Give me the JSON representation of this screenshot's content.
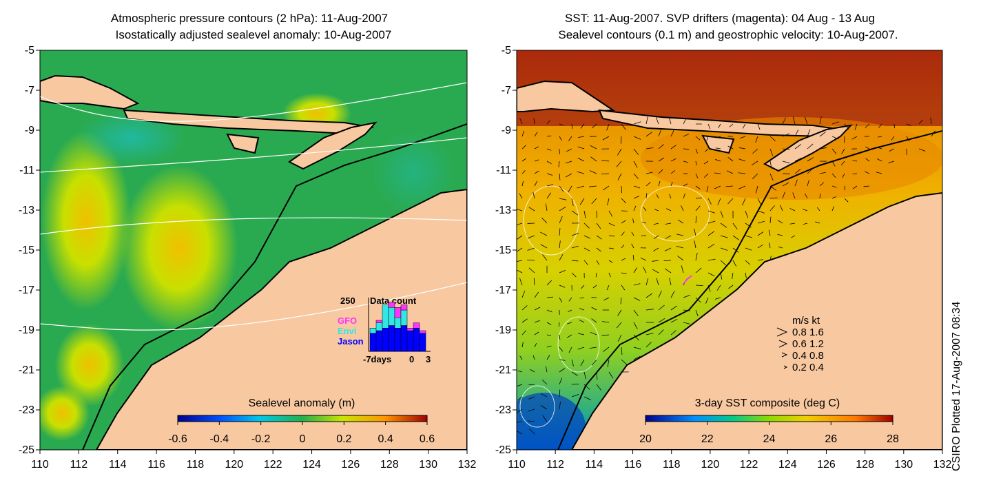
{
  "left_panel": {
    "title_line1": "Atmospheric pressure contours (2 hPa): 11-Aug-2007",
    "title_line2": "Isostatically adjusted sealevel anomaly: 10-Aug-2007",
    "colorbar": {
      "label": "Sealevel anomaly (m)",
      "ticks": [
        "-0.6",
        "-0.4",
        "-0.2",
        "0",
        "0.2",
        "0.4",
        "0.6"
      ],
      "range": [
        -0.6,
        0.6
      ]
    },
    "inset": {
      "title": "Data count",
      "ymax_label": "250",
      "legend": [
        {
          "label": "GFO",
          "color": "#ff33ff"
        },
        {
          "label": "Envi",
          "color": "#33e6e6"
        },
        {
          "label": "Jason",
          "color": "#0000ff"
        }
      ],
      "x_labels": [
        "-7days",
        "0",
        "3"
      ],
      "bars": [
        {
          "jason": 0.35,
          "envi": 0.1,
          "gfo": 0.0
        },
        {
          "jason": 0.4,
          "envi": 0.15,
          "gfo": 0.05
        },
        {
          "jason": 0.45,
          "envi": 0.45,
          "gfo": 0.0
        },
        {
          "jason": 0.5,
          "envi": 0.35,
          "gfo": 0.1
        },
        {
          "jason": 0.45,
          "envi": 0.2,
          "gfo": 0.2
        },
        {
          "jason": 0.5,
          "envi": 0.3,
          "gfo": 0.1
        },
        {
          "jason": 0.4,
          "envi": 0.0,
          "gfo": 0.05
        },
        {
          "jason": 0.45,
          "envi": 0.0,
          "gfo": 0.1
        },
        {
          "jason": 0.35,
          "envi": 0.0,
          "gfo": 0.05
        }
      ]
    }
  },
  "right_panel": {
    "title_line1": "SST: 11-Aug-2007. SVP drifters (magenta): 04 Aug - 13 Aug",
    "title_line2": "Sealevel contours (0.1 m) and geostrophic velocity: 10-Aug-2007.",
    "colorbar": {
      "label": "3-day SST composite (deg C)",
      "ticks": [
        "20",
        "22",
        "24",
        "26",
        "28"
      ],
      "range": [
        20,
        28
      ]
    },
    "vector_key": {
      "header": "m/s  kt",
      "rows": [
        "0.8  1.6",
        "0.6  1.2",
        "0.4  0.8",
        "0.2  0.4"
      ]
    }
  },
  "axes": {
    "lon_ticks": [
      "110",
      "112",
      "114",
      "116",
      "118",
      "120",
      "122",
      "124",
      "126",
      "128",
      "130",
      "132"
    ],
    "lat_ticks": [
      "-5",
      "-7",
      "-9",
      "-11",
      "-13",
      "-15",
      "-17",
      "-19",
      "-21",
      "-23",
      "-25"
    ],
    "lon_range": [
      110,
      132
    ],
    "lat_range": [
      -25,
      -5
    ]
  },
  "credit": "CSIRO Plotted 17-Aug-2007 08:34",
  "colors": {
    "land": "#f8c8a0",
    "coast": "#000000",
    "contour": "#ffffff"
  }
}
